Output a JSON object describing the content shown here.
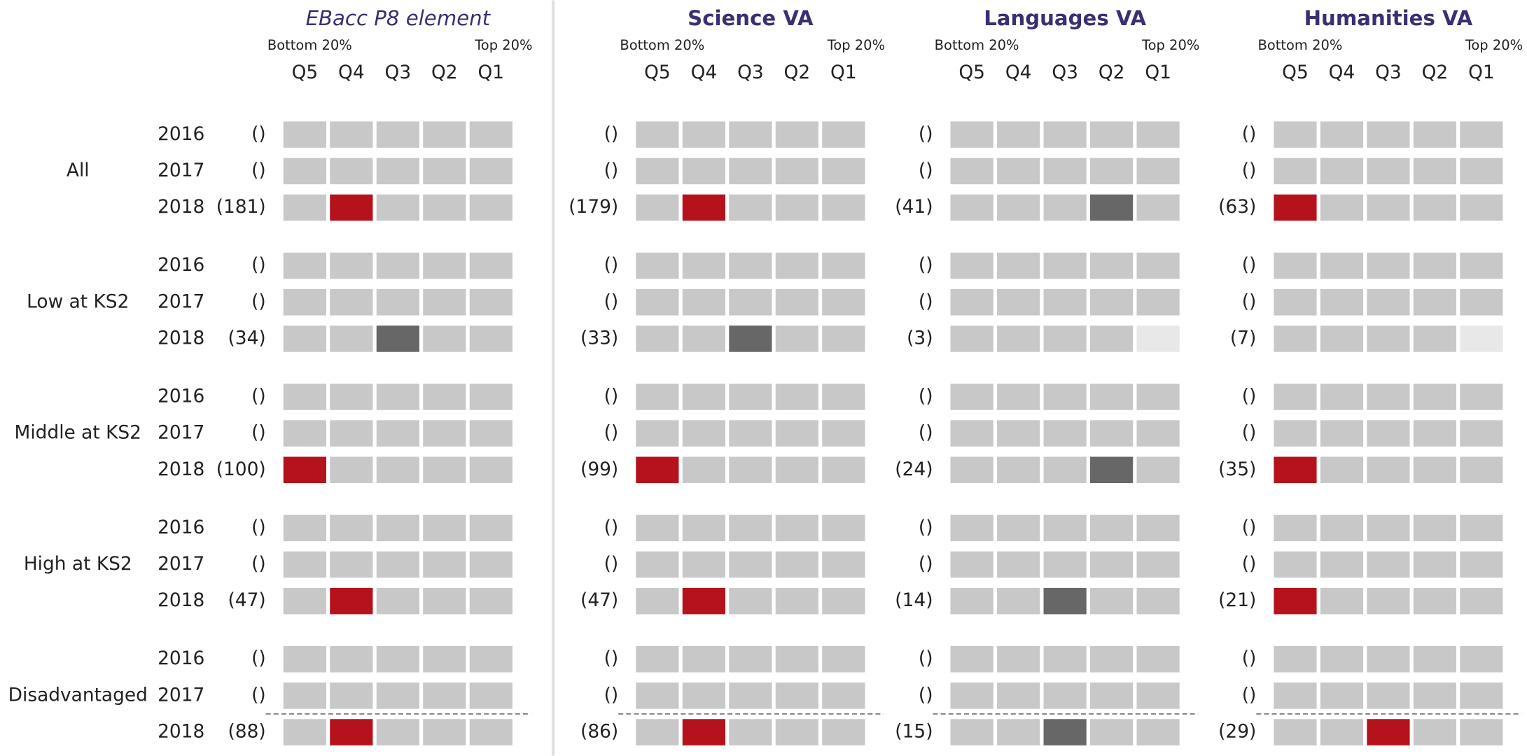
{
  "row_groups": [
    {
      "label": "All",
      "years": [
        "2016",
        "2017",
        "2018"
      ]
    },
    {
      "label": "Low at KS2",
      "years": [
        "2016",
        "2017",
        "2018"
      ]
    },
    {
      "label": "Middle at KS2",
      "years": [
        "2016",
        "2017",
        "2018"
      ]
    },
    {
      "label": "High at KS2",
      "years": [
        "2016",
        "2017",
        "2018"
      ]
    },
    {
      "label": "Disadvantaged",
      "years": [
        "2016",
        "2017",
        "2018"
      ],
      "dashed_before_last": true
    }
  ],
  "cell_color": "#c8c8c8",
  "muted_text_color": "#aaaaaa",
  "title_color": "#3a2f72",
  "panels": [
    {
      "title": "EBacc P8 element",
      "title_style": "italic",
      "bottom": "Bottom 20%",
      "top": "Top 20%",
      "quintiles": [
        "Q5",
        "Q4",
        "Q3",
        "Q2",
        "Q1"
      ],
      "groups": [
        {
          "rows": [
            {
              "count": "()"
            },
            {
              "count": "()"
            },
            {
              "count": "(181)",
              "highlight": {
                "index": 1,
                "color": "#b5121b"
              }
            }
          ]
        },
        {
          "rows": [
            {
              "count": "()"
            },
            {
              "count": "()"
            },
            {
              "count": "(34)",
              "highlight": {
                "index": 2,
                "color": "#676767"
              }
            }
          ]
        },
        {
          "rows": [
            {
              "count": "()"
            },
            {
              "count": "()"
            },
            {
              "count": "(100)",
              "highlight": {
                "index": 0,
                "color": "#b5121b"
              }
            }
          ]
        },
        {
          "rows": [
            {
              "count": "()"
            },
            {
              "count": "()"
            },
            {
              "count": "(47)",
              "highlight": {
                "index": 1,
                "color": "#b5121b"
              }
            }
          ]
        },
        {
          "rows": [
            {
              "count": "()"
            },
            {
              "count": "()"
            },
            {
              "count": "(88)",
              "highlight": {
                "index": 1,
                "color": "#b5121b"
              }
            }
          ]
        }
      ]
    },
    {
      "title": "Science VA",
      "title_style": "bold",
      "bottom": "Bottom 20%",
      "top": "Top 20%",
      "quintiles": [
        "Q5",
        "Q4",
        "Q3",
        "Q2",
        "Q1"
      ],
      "groups": [
        {
          "rows": [
            {
              "count": "()"
            },
            {
              "count": "()"
            },
            {
              "count": "(179)",
              "highlight": {
                "index": 1,
                "color": "#b5121b"
              }
            }
          ]
        },
        {
          "rows": [
            {
              "count": "()"
            },
            {
              "count": "()"
            },
            {
              "count": "(33)",
              "highlight": {
                "index": 2,
                "color": "#676767"
              }
            }
          ]
        },
        {
          "rows": [
            {
              "count": "()"
            },
            {
              "count": "()"
            },
            {
              "count": "(99)",
              "highlight": {
                "index": 0,
                "color": "#b5121b"
              }
            }
          ]
        },
        {
          "rows": [
            {
              "count": "()"
            },
            {
              "count": "()"
            },
            {
              "count": "(47)",
              "highlight": {
                "index": 1,
                "color": "#b5121b"
              }
            }
          ]
        },
        {
          "rows": [
            {
              "count": "()"
            },
            {
              "count": "()"
            },
            {
              "count": "(86)",
              "highlight": {
                "index": 1,
                "color": "#b5121b"
              }
            }
          ]
        }
      ]
    },
    {
      "title": "Languages VA",
      "title_style": "bold",
      "bottom": "Bottom 20%",
      "top": "Top 20%",
      "quintiles": [
        "Q5",
        "Q4",
        "Q3",
        "Q2",
        "Q1"
      ],
      "groups": [
        {
          "rows": [
            {
              "count": "()"
            },
            {
              "count": "()"
            },
            {
              "count": "(41)",
              "highlight": {
                "index": 3,
                "color": "#676767"
              }
            }
          ]
        },
        {
          "rows": [
            {
              "count": "()"
            },
            {
              "count": "()"
            },
            {
              "count": "(3)",
              "muted": true,
              "highlight": {
                "index": 4,
                "color": "#e8e8e8"
              }
            }
          ]
        },
        {
          "rows": [
            {
              "count": "()"
            },
            {
              "count": "()"
            },
            {
              "count": "(24)",
              "highlight": {
                "index": 3,
                "color": "#676767"
              }
            }
          ]
        },
        {
          "rows": [
            {
              "count": "()"
            },
            {
              "count": "()"
            },
            {
              "count": "(14)",
              "highlight": {
                "index": 2,
                "color": "#676767"
              }
            }
          ]
        },
        {
          "rows": [
            {
              "count": "()"
            },
            {
              "count": "()"
            },
            {
              "count": "(15)",
              "highlight": {
                "index": 2,
                "color": "#676767"
              }
            }
          ]
        }
      ]
    },
    {
      "title": "Humanities VA",
      "title_style": "bold",
      "bottom": "Bottom 20%",
      "top": "Top 20%",
      "quintiles": [
        "Q5",
        "Q4",
        "Q3",
        "Q2",
        "Q1"
      ],
      "groups": [
        {
          "rows": [
            {
              "count": "()"
            },
            {
              "count": "()"
            },
            {
              "count": "(63)",
              "highlight": {
                "index": 0,
                "color": "#b5121b"
              }
            }
          ]
        },
        {
          "rows": [
            {
              "count": "()"
            },
            {
              "count": "()"
            },
            {
              "count": "(7)",
              "muted": true,
              "highlight": {
                "index": 4,
                "color": "#e8e8e8"
              }
            }
          ]
        },
        {
          "rows": [
            {
              "count": "()"
            },
            {
              "count": "()"
            },
            {
              "count": "(35)",
              "highlight": {
                "index": 0,
                "color": "#b5121b"
              }
            }
          ]
        },
        {
          "rows": [
            {
              "count": "()"
            },
            {
              "count": "()"
            },
            {
              "count": "(21)",
              "highlight": {
                "index": 0,
                "color": "#b5121b"
              }
            }
          ]
        },
        {
          "rows": [
            {
              "count": "()"
            },
            {
              "count": "()"
            },
            {
              "count": "(29)",
              "highlight": {
                "index": 2,
                "color": "#b5121b"
              }
            }
          ]
        }
      ]
    }
  ]
}
